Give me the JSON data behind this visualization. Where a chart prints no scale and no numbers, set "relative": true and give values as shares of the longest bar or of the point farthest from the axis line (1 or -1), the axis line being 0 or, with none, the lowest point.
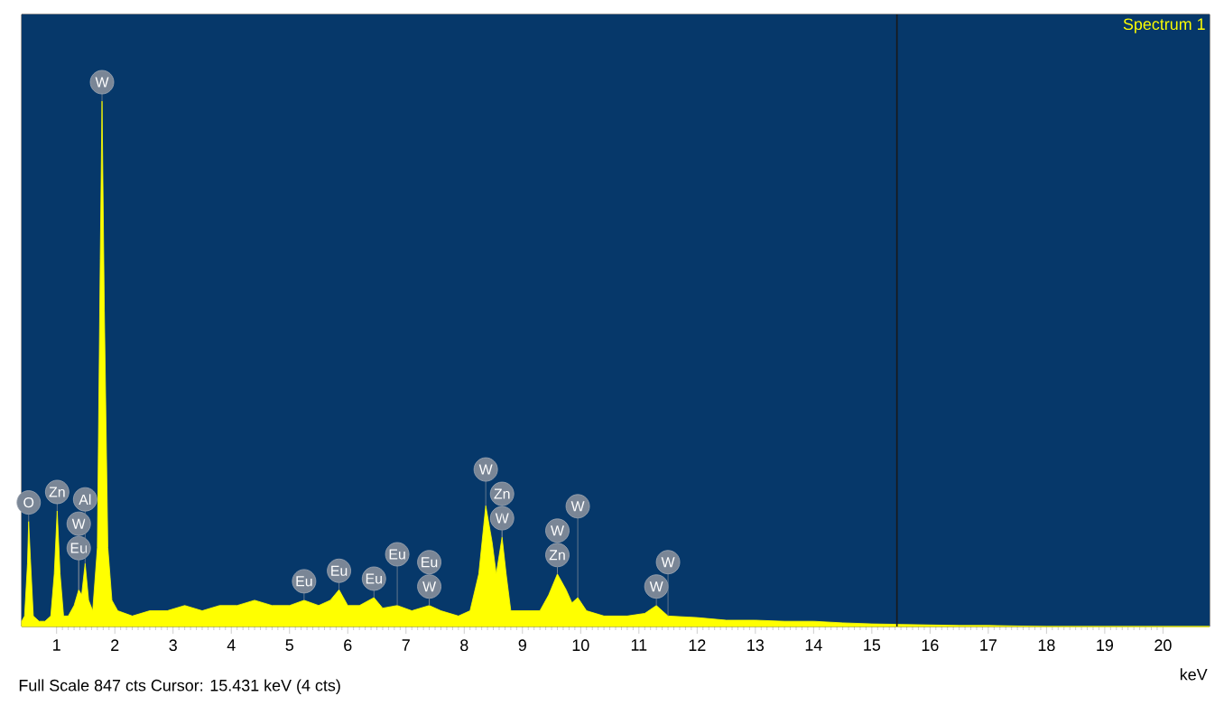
{
  "chart_data": {
    "type": "area",
    "relative": true,
    "color": "#ffff00",
    "xlabel": "keV",
    "xlim": [
      0.4,
      20.8
    ],
    "xticks": [
      1,
      2,
      3,
      4,
      5,
      6,
      7,
      8,
      9,
      10,
      11,
      12,
      13,
      14,
      15,
      16,
      17,
      18,
      19,
      20
    ],
    "x": [
      0.4,
      0.45,
      0.5,
      0.52,
      0.55,
      0.6,
      0.7,
      0.8,
      0.9,
      0.96,
      1.01,
      1.06,
      1.12,
      1.2,
      1.3,
      1.38,
      1.43,
      1.49,
      1.55,
      1.62,
      1.7,
      1.75,
      1.78,
      1.82,
      1.88,
      1.95,
      2.05,
      2.3,
      2.6,
      2.9,
      3.2,
      3.5,
      3.8,
      4.1,
      4.4,
      4.7,
      5.0,
      5.25,
      5.5,
      5.7,
      5.85,
      6.0,
      6.2,
      6.45,
      6.6,
      6.85,
      7.1,
      7.4,
      7.6,
      7.9,
      8.1,
      8.25,
      8.37,
      8.48,
      8.55,
      8.65,
      8.72,
      8.8,
      9.0,
      9.3,
      9.45,
      9.6,
      9.75,
      9.85,
      9.95,
      10.1,
      10.4,
      10.8,
      11.1,
      11.3,
      11.5,
      12.0,
      12.5,
      13.0,
      13.5,
      14.0,
      14.5,
      15.0,
      15.5,
      16.0,
      16.5,
      17.0,
      17.5,
      18.0,
      20.8
    ],
    "values": [
      0.01,
      0.02,
      0.12,
      0.2,
      0.13,
      0.02,
      0.01,
      0.01,
      0.02,
      0.1,
      0.22,
      0.1,
      0.02,
      0.02,
      0.04,
      0.07,
      0.06,
      0.12,
      0.05,
      0.03,
      0.15,
      0.7,
      1.0,
      0.6,
      0.15,
      0.05,
      0.03,
      0.02,
      0.03,
      0.03,
      0.04,
      0.03,
      0.04,
      0.04,
      0.05,
      0.04,
      0.04,
      0.05,
      0.04,
      0.05,
      0.07,
      0.04,
      0.04,
      0.055,
      0.035,
      0.04,
      0.03,
      0.04,
      0.03,
      0.02,
      0.03,
      0.1,
      0.23,
      0.16,
      0.1,
      0.17,
      0.1,
      0.03,
      0.03,
      0.03,
      0.06,
      0.1,
      0.07,
      0.045,
      0.055,
      0.03,
      0.02,
      0.02,
      0.025,
      0.04,
      0.02,
      0.017,
      0.012,
      0.012,
      0.01,
      0.01,
      0.007,
      0.005,
      0.004,
      0.003,
      0.002,
      0.002,
      0.001,
      0,
      0
    ],
    "ref_lines": [
      {
        "axis": "x",
        "value": 15.431,
        "color": "#1a1a1a"
      }
    ],
    "annotations": [
      "Spectrum 1",
      "Full Scale 847 cts  Cursor: 15.431 keV (4 cts)",
      {
        "text": "O",
        "x": 0.52,
        "y": 0.2
      },
      {
        "text": "Zn",
        "x": 1.01,
        "y": 0.22
      },
      {
        "text": "Eu",
        "x": 1.38,
        "y": 0.07
      },
      {
        "text": "W",
        "x": 1.38,
        "y": 0.07
      },
      {
        "text": "Al",
        "x": 1.49,
        "y": 0.12
      },
      {
        "text": "W",
        "x": 1.78,
        "y": 1.0
      },
      {
        "text": "Eu",
        "x": 5.25,
        "y": 0.05
      },
      {
        "text": "Eu",
        "x": 5.85,
        "y": 0.07
      },
      {
        "text": "Eu",
        "x": 6.45,
        "y": 0.055
      },
      {
        "text": "Eu",
        "x": 6.85,
        "y": 0.04
      },
      {
        "text": "W",
        "x": 7.4,
        "y": 0.04
      },
      {
        "text": "Eu",
        "x": 7.4,
        "y": 0.04
      },
      {
        "text": "W",
        "x": 8.65,
        "y": 0.17
      },
      {
        "text": "Zn",
        "x": 8.65,
        "y": 0.17
      },
      {
        "text": "W",
        "x": 8.37,
        "y": 0.23
      },
      {
        "text": "Zn",
        "x": 9.6,
        "y": 0.1
      },
      {
        "text": "W",
        "x": 9.6,
        "y": 0.1
      },
      {
        "text": "W",
        "x": 9.95,
        "y": 0.055
      },
      {
        "text": "W",
        "x": 11.3,
        "y": 0.04
      },
      {
        "text": "W",
        "x": 11.5,
        "y": 0.02
      }
    ]
  }
}
